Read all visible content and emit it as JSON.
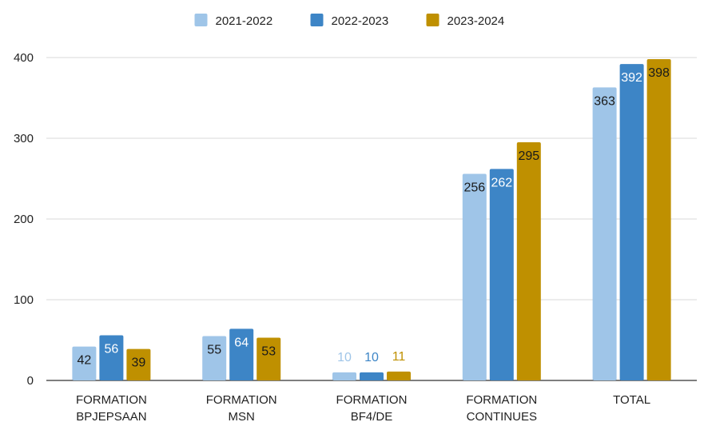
{
  "chart_data": {
    "type": "bar",
    "title": "",
    "xlabel": "",
    "ylabel": "",
    "ylim": [
      0,
      400
    ],
    "yticks": [
      0,
      100,
      200,
      300,
      400
    ],
    "grid": true,
    "legend_position": "top",
    "categories": [
      [
        "FORMATION",
        "BPJEPSAAN"
      ],
      [
        "FORMATION",
        "MSN"
      ],
      [
        "FORMATION",
        "BF4/DE"
      ],
      [
        "FORMATION",
        "CONTINUES"
      ],
      [
        "TOTAL"
      ]
    ],
    "series": [
      {
        "name": "2021-2022",
        "color": "#9fc5e8",
        "values": [
          42,
          55,
          10,
          256,
          363
        ]
      },
      {
        "name": "2022-2023",
        "color": "#3d85c6",
        "values": [
          56,
          64,
          10,
          262,
          392
        ]
      },
      {
        "name": "2023-2024",
        "color": "#bf9000",
        "values": [
          39,
          53,
          11,
          295,
          398
        ]
      }
    ]
  }
}
